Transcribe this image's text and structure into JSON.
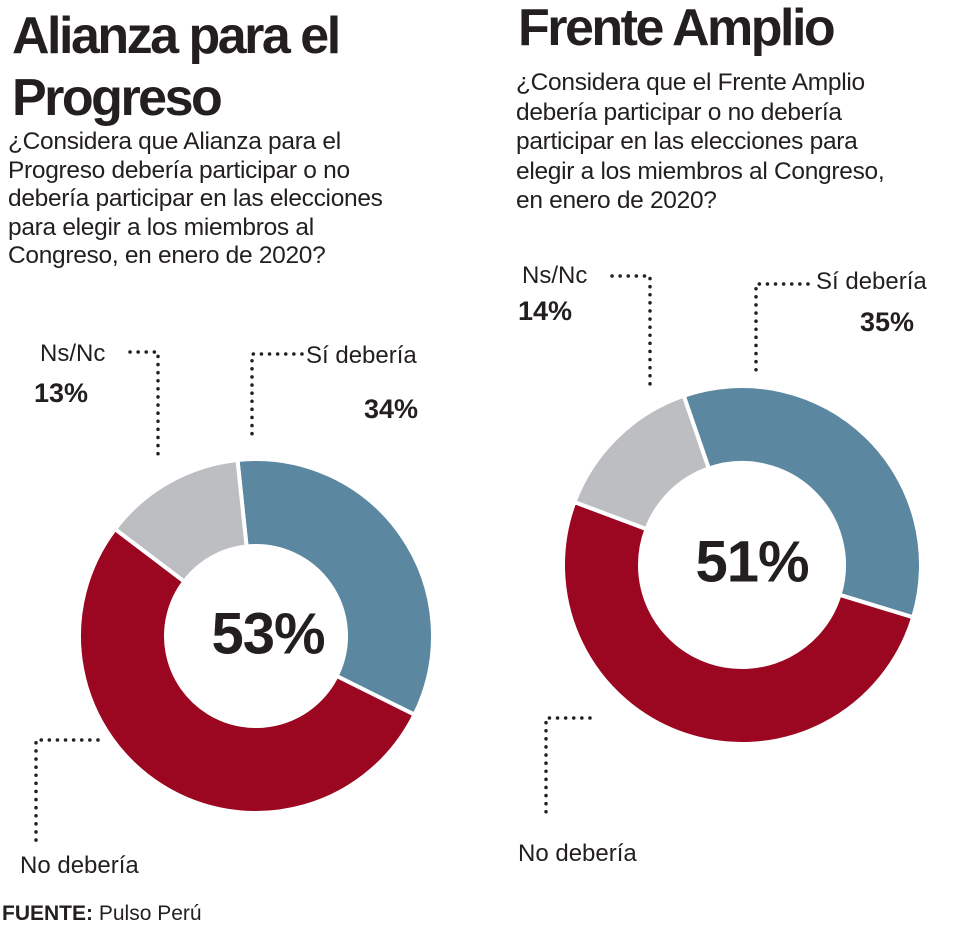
{
  "chart_data": [
    {
      "type": "pie",
      "title": "Alianza para el Progreso",
      "question": "¿Considera que Alianza para el Progreso debería participar o no debería participar en las elecciones para elegir a los miembros al Congreso, en enero de 2020?",
      "question_lines": [
        "¿Considera que Alianza para el",
        "Progreso debería participar o no",
        "debería participar en las elecciones",
        "para elegir a los miembros al",
        "Congreso, en enero de 2020?"
      ],
      "center_label": "53%",
      "slices": [
        {
          "label": "Sí debería",
          "value": 34,
          "display": "34%",
          "color": "#5b87a0"
        },
        {
          "label": "No debería",
          "value": 53,
          "display": "",
          "color": "#9b0620"
        },
        {
          "label": "Ns/Nc",
          "value": 13,
          "display": "13%",
          "color": "#bcbec1"
        }
      ]
    },
    {
      "type": "pie",
      "title": "Frente Amplio",
      "question": "¿Considera que el Frente Amplio debería participar o no debería participar en las elecciones para elegir a los miembros al Congreso, en enero de 2020?",
      "question_lines": [
        "¿Considera que el Frente Amplio",
        "debería participar o no debería",
        "participar en las elecciones para",
        "elegir a los miembros al Congreso,",
        "en enero de 2020?"
      ],
      "center_label": "51%",
      "slices": [
        {
          "label": "Sí debería",
          "value": 35,
          "display": "35%",
          "color": "#5b87a0"
        },
        {
          "label": "No debería",
          "value": 51,
          "display": "",
          "color": "#9b0620"
        },
        {
          "label": "Ns/Nc",
          "value": 14,
          "display": "14%",
          "color": "#bcbec1"
        }
      ]
    }
  ],
  "titles": {
    "left_line1": "Alianza para el",
    "left_line2": "Progreso",
    "right": "Frente Amplio"
  },
  "source": {
    "label": "FUENTE:",
    "value": "Pulso Perú"
  }
}
